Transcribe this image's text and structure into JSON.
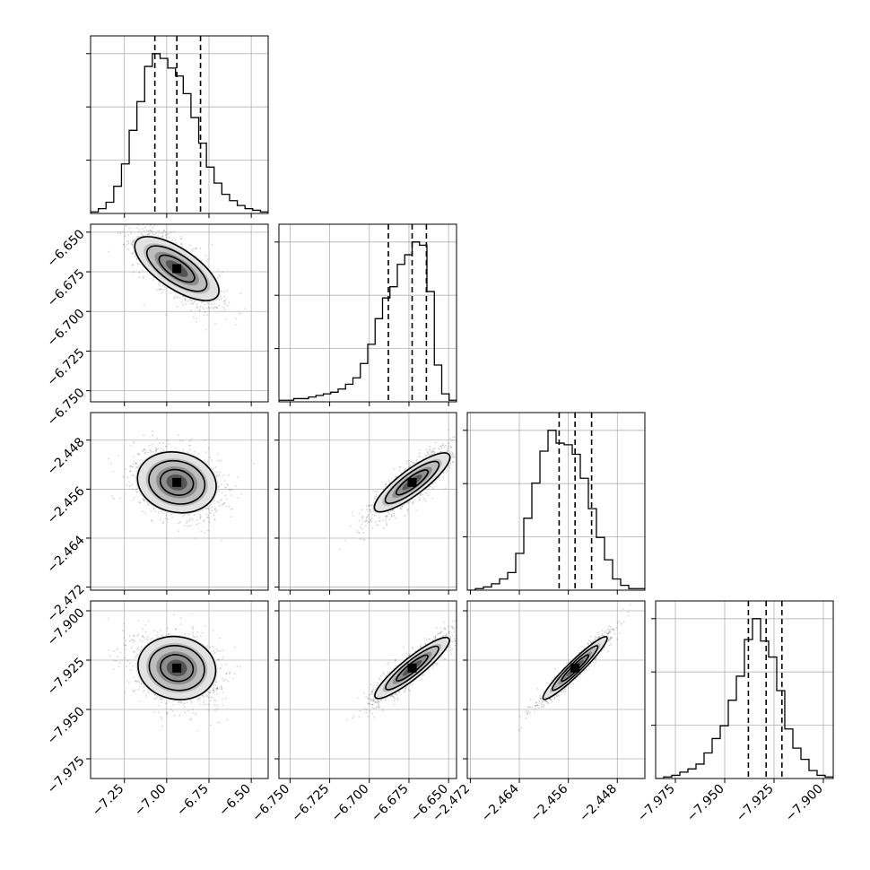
{
  "chart_data": {
    "type": "scatter",
    "parameters": [
      {
        "ticks": [
          -7.25,
          -7.0,
          -6.75,
          -6.5
        ],
        "tick_labels": [
          "−7.25",
          "−7.00",
          "−6.75",
          "−6.50"
        ],
        "range": [
          -7.45,
          -6.4
        ],
        "median": -6.94,
        "q16": -7.07,
        "q84": -6.8,
        "sigma": 0.12
      },
      {
        "ticks": [
          -6.75,
          -6.725,
          -6.7,
          -6.675,
          -6.65
        ],
        "tick_labels": [
          "−6.750",
          "−6.725",
          "−6.700",
          "−6.675",
          "−6.650"
        ],
        "range": [
          -6.757,
          -6.645
        ],
        "median": -6.673,
        "q16": -6.688,
        "q84": -6.664,
        "sigma": 0.012
      },
      {
        "ticks": [
          -2.472,
          -2.464,
          -2.456,
          -2.448
        ],
        "tick_labels": [
          "−2.472",
          "−2.464",
          "−2.456",
          "−2.448"
        ],
        "range": [
          -2.4725,
          -2.4435
        ],
        "median": -2.4549,
        "q16": -2.4575,
        "q84": -2.4522,
        "sigma": 0.0027
      },
      {
        "ticks": [
          -7.975,
          -7.95,
          -7.925,
          -7.9
        ],
        "tick_labels": [
          "−7.975",
          "−7.950",
          "−7.925",
          "−7.900"
        ],
        "range": [
          -7.985,
          -7.895
        ],
        "median": -7.929,
        "q16": -7.938,
        "q84": -7.921,
        "sigma": 0.0085
      }
    ],
    "histograms": [
      [
        0.01,
        0.03,
        0.07,
        0.17,
        0.31,
        0.52,
        0.7,
        0.92,
        1.0,
        0.97,
        0.91,
        0.86,
        0.75,
        0.6,
        0.44,
        0.29,
        0.19,
        0.12,
        0.08,
        0.05,
        0.03,
        0.02,
        0.01
      ],
      [
        0.01,
        0.01,
        0.02,
        0.02,
        0.03,
        0.04,
        0.05,
        0.06,
        0.08,
        0.11,
        0.15,
        0.24,
        0.36,
        0.52,
        0.65,
        0.72,
        0.86,
        0.92,
        1.0,
        0.98,
        0.69,
        0.23,
        0.05,
        0.01
      ],
      [
        0.0,
        0.01,
        0.02,
        0.04,
        0.07,
        0.11,
        0.23,
        0.45,
        0.67,
        0.87,
        1.0,
        0.92,
        0.91,
        0.85,
        0.7,
        0.51,
        0.33,
        0.19,
        0.07,
        0.03,
        0.01,
        0.01
      ],
      [
        0.0,
        0.01,
        0.02,
        0.04,
        0.06,
        0.09,
        0.16,
        0.25,
        0.33,
        0.49,
        0.64,
        0.87,
        1.0,
        0.86,
        0.76,
        0.55,
        0.31,
        0.19,
        0.12,
        0.05,
        0.02,
        0.01
      ]
    ],
    "correlations": {
      "1-0": -0.72,
      "2-0": -0.28,
      "2-1": 0.86,
      "3-0": -0.22,
      "3-1": 0.91,
      "3-2": 0.96
    },
    "histogram_peak": {
      "0": -6.94,
      "1": -6.665,
      "2": -2.4555,
      "3": -7.93
    },
    "hist_ticks": [
      0.3333,
      0.6667,
      1.0
    ],
    "grid": true,
    "scatter_color": "#000000",
    "contour_levels": 3,
    "quantiles": [
      0.16,
      0.5,
      0.84
    ]
  }
}
